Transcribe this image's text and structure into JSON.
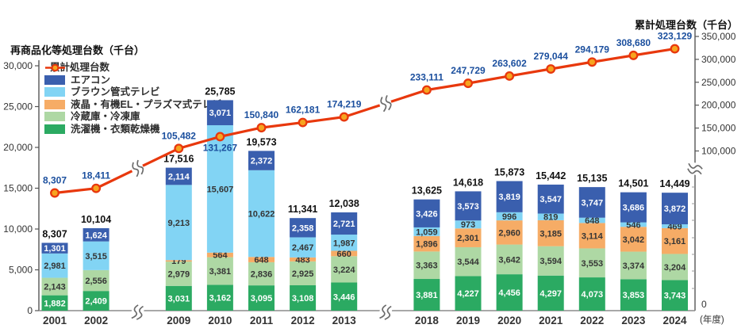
{
  "page": {
    "left_axis_title": "再商品化等処理台数（千台）",
    "right_axis_title": "累計処理台数（千台）",
    "x_axis_unit": "(年度)"
  },
  "colors": {
    "line": "#e8380d",
    "marker_fill": "#f6a41f",
    "aircon": "#3a5fae",
    "crt": "#82d4f4",
    "lcd": "#f6ac66",
    "fridge": "#aed8a4",
    "washer": "#2baa62",
    "seg_label_dark": "#353535",
    "seg_label_light": "#ffffff",
    "line_label": "#1b4f9e",
    "total_label": "#111111",
    "axis": "#777777",
    "tick_text": "#333333"
  },
  "legend": [
    {
      "key": "line",
      "type": "line",
      "label": "累計処理台数"
    },
    {
      "key": "aircon",
      "type": "box",
      "label": "エアコン"
    },
    {
      "key": "crt",
      "type": "box",
      "label": "ブラウン管式テレビ"
    },
    {
      "key": "lcd",
      "type": "box",
      "label": "液晶・有機EL・プラズマ式テレビ"
    },
    {
      "key": "fridge",
      "type": "box",
      "label": "冷蔵庫・冷凍庫"
    },
    {
      "key": "washer",
      "type": "box",
      "label": "洗濯機・衣類乾燥機"
    }
  ],
  "chart_data": {
    "type": "stacked-bar + cumulative line",
    "title": "",
    "xlabel": "(年度)",
    "left_axis": {
      "label": "再商品化等処理台数（千台）",
      "range": [
        0,
        30000
      ],
      "ticks": [
        0,
        5000,
        10000,
        15000,
        20000,
        25000,
        30000
      ]
    },
    "right_axis": {
      "label": "累計処理台数（千台）",
      "range": [
        0,
        350000
      ],
      "ticks": [
        100000,
        150000,
        200000,
        250000,
        300000,
        350000
      ],
      "zero_tick": 0,
      "has_break": true
    },
    "stack_order": [
      "washer",
      "fridge",
      "lcd",
      "crt",
      "aircon"
    ],
    "series_names": {
      "washer": "洗濯機・衣類乾燥機",
      "fridge": "冷蔵庫・冷凍庫",
      "lcd": "液晶・有機EL・プラズマ式テレビ",
      "crt": "ブラウン管式テレビ",
      "aircon": "エアコン",
      "line": "累計処理台数"
    },
    "x_breaks_after": [
      "2002",
      "2013"
    ],
    "years": [
      {
        "year": "2001",
        "segments": {
          "washer": 1882,
          "fridge": 2143,
          "crt": 2981,
          "aircon": 1301
        },
        "total": 8307,
        "cumulative": 8307
      },
      {
        "year": "2002",
        "segments": {
          "washer": 2409,
          "fridge": 2556,
          "crt": 3515,
          "aircon": 1624
        },
        "total": 10104,
        "cumulative": 18411
      },
      {
        "year": "2009",
        "segments": {
          "washer": 3031,
          "fridge": 2979,
          "lcd": 179,
          "crt": 9213,
          "aircon": 2114
        },
        "total": 17516,
        "cumulative": 105482
      },
      {
        "year": "2010",
        "segments": {
          "washer": 3162,
          "fridge": 3381,
          "lcd": 564,
          "crt": 15607,
          "aircon": 3071
        },
        "total": 25785,
        "cumulative": 131267,
        "cum_label_below": true
      },
      {
        "year": "2011",
        "segments": {
          "washer": 3095,
          "fridge": 2836,
          "lcd": 648,
          "crt": 10622,
          "aircon": 2372
        },
        "total": 19573,
        "cumulative": 150840
      },
      {
        "year": "2012",
        "segments": {
          "washer": 3108,
          "fridge": 2925,
          "lcd": 483,
          "crt": 2467,
          "aircon": 2358
        },
        "total": 11341,
        "cumulative": 162181
      },
      {
        "year": "2013",
        "segments": {
          "washer": 3446,
          "fridge": 3224,
          "lcd": 660,
          "crt": 1987,
          "aircon": 2721
        },
        "total": 12038,
        "cumulative": 174219
      },
      {
        "year": "2018",
        "segments": {
          "washer": 3881,
          "fridge": 3363,
          "lcd": 1896,
          "crt": 1059,
          "aircon": 3426
        },
        "total": 13625,
        "cumulative": 233111
      },
      {
        "year": "2019",
        "segments": {
          "washer": 4227,
          "fridge": 3544,
          "lcd": 2301,
          "crt": 973,
          "aircon": 3573
        },
        "total": 14618,
        "cumulative": 247729
      },
      {
        "year": "2020",
        "segments": {
          "washer": 4456,
          "fridge": 3642,
          "lcd": 2960,
          "crt": 996,
          "aircon": 3819
        },
        "total": 15873,
        "cumulative": 263602
      },
      {
        "year": "2021",
        "segments": {
          "washer": 4297,
          "fridge": 3594,
          "lcd": 3185,
          "crt": 819,
          "aircon": 3547
        },
        "total": 15442,
        "cumulative": 279044
      },
      {
        "year": "2022",
        "segments": {
          "washer": 4073,
          "fridge": 3553,
          "lcd": 3114,
          "crt": 648,
          "aircon": 3747
        },
        "total": 15135,
        "cumulative": 294179
      },
      {
        "year": "2023",
        "segments": {
          "washer": 3853,
          "fridge": 3374,
          "lcd": 3042,
          "crt": 546,
          "aircon": 3686
        },
        "total": 14501,
        "cumulative": 308680
      },
      {
        "year": "2024",
        "segments": {
          "washer": 3743,
          "fridge": 3204,
          "lcd": 3161,
          "crt": 469,
          "aircon": 3872
        },
        "total": 14449,
        "cumulative": 323129
      }
    ]
  }
}
